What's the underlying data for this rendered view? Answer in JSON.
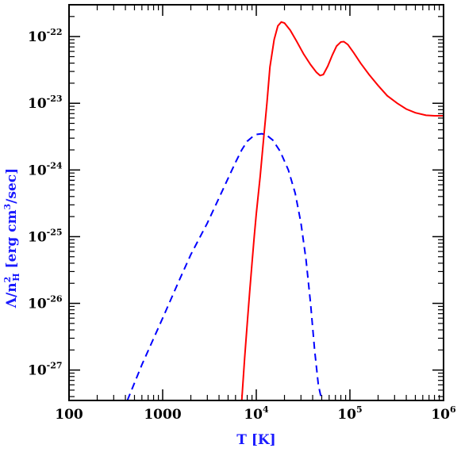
{
  "chart_data": {
    "type": "line",
    "log_x": true,
    "log_y": true,
    "xlim": [
      100,
      1000000
    ],
    "ylim": [
      3.5e-28,
      3e-22
    ],
    "xlabel": "T [K]",
    "ylabel": {
      "prefix": "Λ/n",
      "sup": "2",
      "sub": "H",
      "suffix": " [erg cm",
      "suffix_sup": "3",
      "suffix_end": "/sec]"
    },
    "x_ticks": [
      {
        "value": 100,
        "base": "100",
        "exp": ""
      },
      {
        "value": 1000,
        "base": "1000",
        "exp": ""
      },
      {
        "value": 10000,
        "base": "10",
        "exp": "4"
      },
      {
        "value": 100000,
        "base": "10",
        "exp": "5"
      },
      {
        "value": 1000000,
        "base": "10",
        "exp": "6"
      }
    ],
    "y_ticks": [
      {
        "value": 1e-27,
        "base": "10",
        "exp": "-27"
      },
      {
        "value": 1e-26,
        "base": "10",
        "exp": "-26"
      },
      {
        "value": 1e-25,
        "base": "10",
        "exp": "-25"
      },
      {
        "value": 1e-24,
        "base": "10",
        "exp": "-24"
      },
      {
        "value": 1e-23,
        "base": "10",
        "exp": "-23"
      },
      {
        "value": 1e-22,
        "base": "10",
        "exp": "-22"
      }
    ],
    "series": [
      {
        "style": "solid",
        "color": "#ff0000",
        "points": [
          [
            7000,
            3.5e-28
          ],
          [
            7500,
            1.5e-27
          ],
          [
            8000,
            5e-27
          ],
          [
            8500,
            1.5e-26
          ],
          [
            9000,
            4e-26
          ],
          [
            9500,
            1e-25
          ],
          [
            10000,
            2.2e-25
          ],
          [
            11000,
            8e-25
          ],
          [
            12000,
            3e-24
          ],
          [
            13000,
            1e-23
          ],
          [
            14000,
            3.5e-23
          ],
          [
            15500,
            9e-23
          ],
          [
            17000,
            1.45e-22
          ],
          [
            18500,
            1.65e-22
          ],
          [
            20000,
            1.6e-22
          ],
          [
            23000,
            1.25e-22
          ],
          [
            27000,
            8.5e-23
          ],
          [
            32000,
            5.5e-23
          ],
          [
            38000,
            3.8e-23
          ],
          [
            44000,
            2.9e-23
          ],
          [
            48000,
            2.6e-23
          ],
          [
            52000,
            2.7e-23
          ],
          [
            58000,
            3.6e-23
          ],
          [
            65000,
            5.3e-23
          ],
          [
            72000,
            7.2e-23
          ],
          [
            80000,
            8.3e-23
          ],
          [
            86000,
            8.4e-23
          ],
          [
            95000,
            7.6e-23
          ],
          [
            110000,
            5.7e-23
          ],
          [
            130000,
            4e-23
          ],
          [
            160000,
            2.7e-23
          ],
          [
            200000,
            1.85e-23
          ],
          [
            250000,
            1.3e-23
          ],
          [
            320000,
            1e-23
          ],
          [
            400000,
            8.2e-24
          ],
          [
            500000,
            7.2e-24
          ],
          [
            650000,
            6.6e-24
          ],
          [
            800000,
            6.5e-24
          ],
          [
            1000000,
            6.5e-24
          ]
        ]
      },
      {
        "style": "dashed",
        "color": "#0000ff",
        "points": [
          [
            420,
            3.5e-28
          ],
          [
            600,
            1.2e-27
          ],
          [
            1000,
            6e-27
          ],
          [
            1500,
            2.2e-26
          ],
          [
            2000,
            5.4e-26
          ],
          [
            3000,
            1.6e-25
          ],
          [
            4000,
            3.8e-25
          ],
          [
            5000,
            7.5e-25
          ],
          [
            6000,
            1.3e-24
          ],
          [
            7000,
            2e-24
          ],
          [
            8000,
            2.7e-24
          ],
          [
            9000,
            3.1e-24
          ],
          [
            10000,
            3.4e-24
          ],
          [
            11500,
            3.5e-24
          ],
          [
            13000,
            3.3e-24
          ],
          [
            15000,
            2.8e-24
          ],
          [
            18000,
            1.9e-24
          ],
          [
            22000,
            1e-24
          ],
          [
            26000,
            4.5e-25
          ],
          [
            30000,
            1.6e-25
          ],
          [
            34000,
            4.5e-26
          ],
          [
            38000,
            1e-26
          ],
          [
            42000,
            2e-27
          ],
          [
            46000,
            6e-28
          ],
          [
            50000,
            3.5e-28
          ]
        ]
      }
    ]
  }
}
